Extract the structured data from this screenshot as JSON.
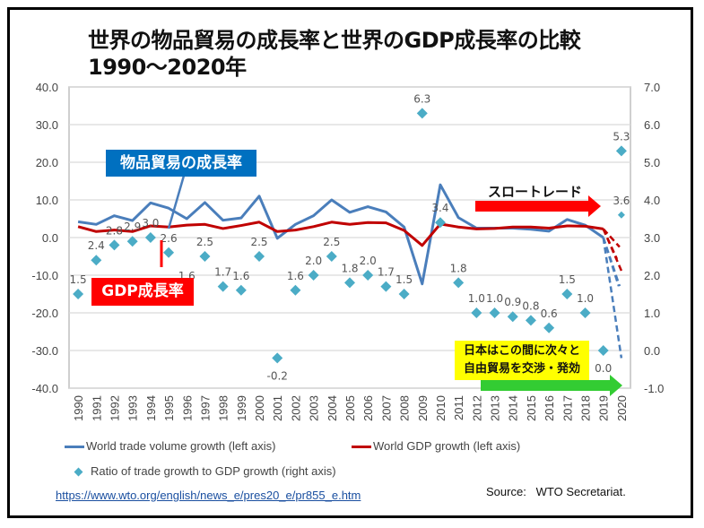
{
  "title_line1": "世界の物品貿易の成長率と世界のGDP成長率の比較",
  "title_line2": "1990〜2020年",
  "annotations": {
    "trade_callout": "物品貿易の成長率",
    "gdp_callout": "GDP成長率",
    "slow_trade": "スロートレード",
    "japan_note_line1": "日本はこの間に次々と",
    "japan_note_line2": "自由貿易を交渉・発効"
  },
  "legend": {
    "trade": "World trade volume growth (left axis)",
    "gdp": "World GDP growth (left axis)",
    "ratio": "Ratio of trade growth to GDP growth (right axis)"
  },
  "url": "https://www.wto.org/english/news_e/pres20_e/pr855_e.htm",
  "source": "Source:   WTO Secretariat.",
  "colors": {
    "trade": "#4a7ebb",
    "gdp": "#c00000",
    "ratio": "#4bacc6",
    "trade_callout_bg": "#0070c0",
    "gdp_callout_bg": "#ff0000",
    "slow_arrow": "#ff0000",
    "japan_arrow": "#33cc33",
    "japan_bg": "#ffff00"
  },
  "chart_data": {
    "type": "line",
    "title": "世界の物品貿易の成長率と世界のGDP成長率の比較 1990〜2020年",
    "x": [
      1990,
      1991,
      1992,
      1993,
      1994,
      1995,
      1996,
      1997,
      1998,
      1999,
      2000,
      2001,
      2002,
      2003,
      2004,
      2005,
      2006,
      2007,
      2008,
      2009,
      2010,
      2011,
      2012,
      2013,
      2014,
      2015,
      2016,
      2017,
      2018,
      2019,
      2020
    ],
    "x_tick_labels": [
      "1990",
      "1991",
      "1992",
      "1993",
      "1994",
      "1995",
      "1996",
      "1997",
      "1998",
      "1999",
      "2000",
      "2001",
      "2002",
      "2003",
      "2004",
      "2005",
      "2006",
      "2007",
      "2008",
      "2009",
      "2010",
      "2011",
      "2012",
      "2013",
      "2014",
      "2015",
      "2016",
      "2017",
      "2018",
      "2019",
      "2020"
    ],
    "left_axis": {
      "label": "",
      "ylim": [
        -40,
        40
      ],
      "ticks": [
        "40.0",
        "30.0",
        "20.0",
        "10.0",
        "0.0",
        "-10.0",
        "-20.0",
        "-30.0",
        "-40.0"
      ]
    },
    "right_axis": {
      "label": "",
      "ylim": [
        -1,
        7
      ],
      "ticks": [
        "7.0",
        "6.0",
        "5.0",
        "4.0",
        "3.0",
        "2.0",
        "1.0",
        "0.0",
        "-1.0"
      ]
    },
    "grid": true,
    "legend_position": "bottom",
    "series": [
      {
        "name": "World trade volume growth (left axis)",
        "axis": "left",
        "type": "line",
        "values": [
          4.2,
          3.5,
          5.8,
          4.5,
          9.2,
          7.8,
          5.0,
          9.3,
          4.6,
          5.2,
          11.0,
          -0.2,
          3.5,
          5.8,
          10.0,
          6.7,
          8.2,
          6.8,
          2.8,
          -12.3,
          14.0,
          5.3,
          2.5,
          2.5,
          2.5,
          2.2,
          1.7,
          4.8,
          3.3,
          0.0
        ],
        "projection_2020": [
          -12.9,
          -32.0
        ]
      },
      {
        "name": "World GDP growth (left axis)",
        "axis": "left",
        "type": "line",
        "values": [
          2.9,
          1.6,
          2.0,
          1.6,
          3.1,
          2.8,
          3.3,
          3.5,
          2.4,
          3.2,
          4.1,
          1.6,
          2.0,
          2.9,
          4.1,
          3.5,
          4.0,
          3.9,
          1.9,
          -2.1,
          3.6,
          2.8,
          2.3,
          2.4,
          2.8,
          2.8,
          2.5,
          3.1,
          3.0,
          2.3
        ],
        "projection_2020": [
          -2.5,
          -8.8
        ]
      },
      {
        "name": "Ratio of trade growth to GDP growth (right axis)",
        "axis": "right",
        "type": "scatter",
        "values": [
          1.5,
          2.4,
          2.8,
          2.9,
          3.0,
          2.6,
          1.6,
          2.5,
          1.7,
          1.6,
          2.5,
          -0.2,
          1.6,
          2.0,
          2.5,
          1.8,
          2.0,
          1.7,
          1.5,
          6.3,
          3.4,
          1.8,
          1.0,
          1.0,
          0.9,
          0.8,
          0.6,
          1.5,
          1.0,
          0.0,
          5.3
        ],
        "extra_2020": 3.6,
        "labels": [
          "1.5",
          "2.4",
          "2.8",
          "2.9",
          "3.0",
          "2.6",
          "1.6",
          "2.5",
          "1.7",
          "1.6",
          "2.5",
          "-0.2",
          "1.6",
          "2.0",
          "2.5",
          "1.8",
          "2.0",
          "1.7",
          "1.5",
          "6.3",
          "3.4",
          "1.8",
          "1.0",
          "1.0",
          "0.9",
          "0.8",
          "0.6",
          "1.5",
          "1.0",
          "0.0",
          "5.3"
        ],
        "extra_label_2020": "3.6"
      }
    ]
  }
}
